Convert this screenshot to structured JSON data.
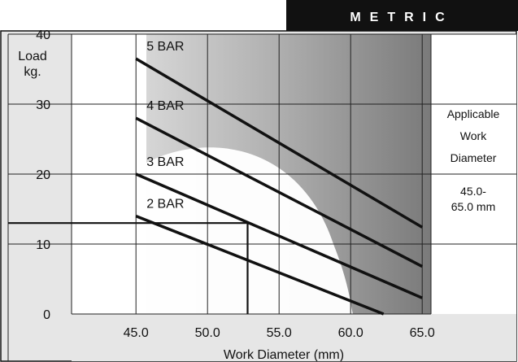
{
  "header": {
    "badge": "METRIC"
  },
  "side_note": {
    "lines": [
      "Applicable",
      "Work",
      "Diameter"
    ],
    "range_lines": [
      "45.0-",
      "65.0 mm"
    ]
  },
  "chart_data": {
    "type": "line",
    "xlabel": "Work Diameter (mm)",
    "ylabel_lines": [
      "Load",
      "kg."
    ],
    "xlim": [
      35,
      70
    ],
    "ylim": [
      0,
      40
    ],
    "x_ticks": [
      "45.0",
      "50.0",
      "55.0",
      "60.0",
      "65.0"
    ],
    "x_tick_values": [
      45,
      50,
      55,
      60,
      65
    ],
    "y_ticks": [
      "0",
      "10",
      "20",
      "30",
      "40"
    ],
    "y_tick_values": [
      0,
      10,
      20,
      30,
      40
    ],
    "grid": true,
    "series": [
      {
        "name": "5 BAR",
        "x": [
          45,
          65
        ],
        "y": [
          36.5,
          12.4
        ]
      },
      {
        "name": "4 BAR",
        "x": [
          45,
          65
        ],
        "y": [
          28.0,
          6.8
        ]
      },
      {
        "name": "3 BAR",
        "x": [
          45,
          65
        ],
        "y": [
          20.0,
          2.3
        ]
      },
      {
        "name": "2 BAR",
        "x": [
          45,
          62.3
        ],
        "y": [
          14.0,
          0.0
        ]
      }
    ],
    "example": {
      "x": 52.8,
      "y": 13.0
    }
  }
}
